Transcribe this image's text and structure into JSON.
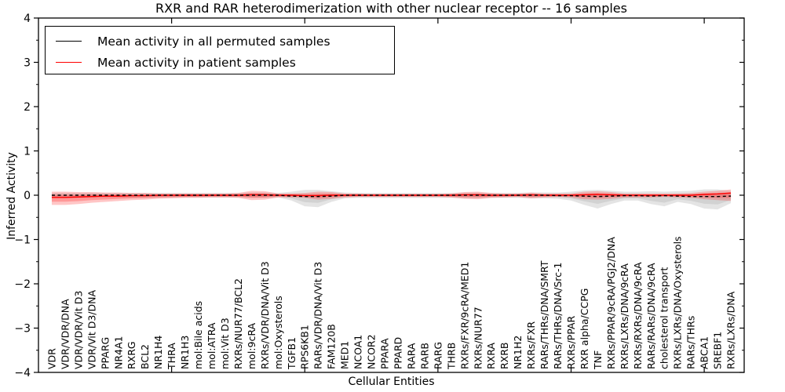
{
  "chart_data": {
    "type": "line",
    "title": "RXR and RAR heterodimerization with other nuclear receptor -- 16 samples",
    "xlabel": "Cellular Entities",
    "ylabel": "Inferred Activity",
    "ylim": [
      -4,
      4
    ],
    "ytick_values": [
      -4,
      -3,
      -2,
      -1,
      0,
      1,
      2,
      3,
      4
    ],
    "ytick_labels": [
      "−4",
      "−3",
      "−2",
      "−1",
      "0",
      "1",
      "2",
      "3",
      "4"
    ],
    "y_minor_step": 0.5,
    "x_major_ticks": [
      10,
      20,
      30,
      40,
      50
    ],
    "xlim": [
      0,
      53
    ],
    "grid": false,
    "legend_position": "upper left",
    "categories": [
      "VDR",
      "VDR/VDR/DNA",
      "VDR/VDR/Vit D3",
      "VDR/Vit D3/DNA",
      "PPARG",
      "NR4A1",
      "RXRG",
      "BCL2",
      "NR1H4",
      "THRA",
      "NR1H3",
      "mol:Bile acids",
      "mol:ATRA",
      "mol:Vit D3",
      "RXRs/NUR77/BCL2",
      "mol:9cRA",
      "RXRs/VDR/DNA/Vit D3",
      "mol:Oxysterols",
      "TGFB1",
      "RPS6KB1",
      "RARs/VDR/DNA/Vit D3",
      "FAM120B",
      "MED1",
      "NCOA1",
      "NCOR2",
      "PPARA",
      "PPARD",
      "RARA",
      "RARB",
      "RARG",
      "THRB",
      "RXRs/FXR/9cRA/MED1",
      "RXRs/NUR77",
      "RXRA",
      "RXRB",
      "NR1H2",
      "RXRs/FXR",
      "RARs/THRs/DNA/SMRT",
      "RARs/THRs/DNA/Src-1",
      "RXRs/PPAR",
      "RXR alpha/CCPG",
      "TNF",
      "RXRs/PPAR/9cRA/PGJ2/DNA",
      "RXRs/LXRs/DNA/9cRA",
      "RXRs/RXRs/DNA/9cRA",
      "RARs/RARs/DNA/9cRA",
      "cholesterol transport",
      "RXRs/LXRs/DNA/Oxysterols",
      "RARs/THRs",
      "ABCA1",
      "SREBF1",
      "RXRs/LXRs/DNA"
    ],
    "series": [
      {
        "name": "Mean activity in all permuted samples",
        "color": "#000000",
        "style": "dashed",
        "values": [
          0,
          0,
          0,
          0,
          0,
          0,
          0,
          0,
          0,
          0,
          0,
          0,
          0,
          0,
          0,
          0,
          0,
          0,
          -0.02,
          -0.03,
          -0.03,
          -0.02,
          0,
          0,
          0,
          0,
          0,
          0,
          0,
          0,
          0,
          0,
          0,
          0,
          0,
          0,
          0,
          0,
          -0.01,
          -0.01,
          -0.02,
          -0.03,
          -0.02,
          -0.01,
          -0.01,
          -0.02,
          -0.01,
          -0.02,
          -0.03,
          -0.03,
          -0.03,
          -0.02
        ]
      },
      {
        "name": "Mean activity in patient samples",
        "color": "#ff0000",
        "style": "solid",
        "values": [
          -0.05,
          -0.05,
          -0.04,
          -0.03,
          -0.02,
          -0.02,
          -0.01,
          -0.01,
          0,
          0,
          0,
          0,
          0,
          0,
          0,
          0.01,
          0.01,
          0,
          0,
          -0.01,
          -0.01,
          0,
          0,
          0,
          0,
          0,
          0,
          0,
          0,
          0,
          0,
          0.01,
          0.01,
          0,
          0,
          0,
          0.01,
          0,
          0,
          0,
          0.01,
          0.02,
          0.01,
          0,
          0,
          0,
          0,
          0,
          0,
          0.02,
          0.03,
          0.05
        ]
      }
    ],
    "bands": [
      {
        "name": "permuted-samples-range",
        "color": "rgba(130,130,130,0.22)",
        "inner_color": "rgba(130,130,130,0.18)",
        "upper": [
          0.05,
          0.05,
          0.05,
          0.05,
          0.05,
          0.05,
          0.05,
          0.05,
          0.05,
          0.05,
          0.05,
          0.05,
          0.05,
          0.05,
          0.05,
          0.06,
          0.06,
          0.05,
          0.08,
          0.12,
          0.12,
          0.09,
          0.06,
          0.05,
          0.05,
          0.05,
          0.05,
          0.05,
          0.05,
          0.05,
          0.05,
          0.06,
          0.06,
          0.05,
          0.05,
          0.05,
          0.06,
          0.06,
          0.06,
          0.08,
          0.11,
          0.12,
          0.1,
          0.08,
          0.08,
          0.09,
          0.08,
          0.09,
          0.1,
          0.13,
          0.13,
          0.1
        ],
        "lower": [
          -0.06,
          -0.06,
          -0.06,
          -0.06,
          -0.06,
          -0.06,
          -0.06,
          -0.06,
          -0.05,
          -0.05,
          -0.05,
          -0.05,
          -0.05,
          -0.05,
          -0.05,
          -0.06,
          -0.06,
          -0.05,
          -0.12,
          -0.25,
          -0.27,
          -0.15,
          -0.07,
          -0.06,
          -0.06,
          -0.06,
          -0.06,
          -0.06,
          -0.06,
          -0.06,
          -0.06,
          -0.07,
          -0.07,
          -0.06,
          -0.06,
          -0.06,
          -0.07,
          -0.07,
          -0.08,
          -0.12,
          -0.22,
          -0.3,
          -0.2,
          -0.12,
          -0.12,
          -0.2,
          -0.25,
          -0.15,
          -0.2,
          -0.3,
          -0.32,
          -0.18
        ]
      },
      {
        "name": "patient-samples-range",
        "color": "rgba(255,45,45,0.27)",
        "inner_color": "rgba(255,45,45,0.30)",
        "upper": [
          0.08,
          0.08,
          0.07,
          0.07,
          0.06,
          0.06,
          0.05,
          0.05,
          0.04,
          0.04,
          0.04,
          0.04,
          0.04,
          0.04,
          0.05,
          0.1,
          0.09,
          0.04,
          0.04,
          0.05,
          0.08,
          0.07,
          0.04,
          0.04,
          0.03,
          0.03,
          0.03,
          0.03,
          0.03,
          0.03,
          0.04,
          0.07,
          0.08,
          0.05,
          0.04,
          0.04,
          0.06,
          0.04,
          0.04,
          0.04,
          0.08,
          0.09,
          0.07,
          0.04,
          0.04,
          0.04,
          0.04,
          0.04,
          0.05,
          0.08,
          0.1,
          0.13
        ],
        "lower": [
          -0.22,
          -0.22,
          -0.2,
          -0.17,
          -0.15,
          -0.13,
          -0.11,
          -0.1,
          -0.08,
          -0.07,
          -0.06,
          -0.06,
          -0.05,
          -0.05,
          -0.06,
          -0.11,
          -0.1,
          -0.05,
          -0.05,
          -0.06,
          -0.1,
          -0.08,
          -0.05,
          -0.04,
          -0.04,
          -0.04,
          -0.04,
          -0.04,
          -0.04,
          -0.04,
          -0.05,
          -0.08,
          -0.09,
          -0.06,
          -0.05,
          -0.04,
          -0.07,
          -0.05,
          -0.04,
          -0.05,
          -0.09,
          -0.1,
          -0.08,
          -0.05,
          -0.05,
          -0.05,
          -0.04,
          -0.05,
          -0.06,
          -0.09,
          -0.11,
          -0.13
        ]
      }
    ]
  },
  "legend": {
    "items": [
      {
        "label": "Mean activity in all permuted samples",
        "color": "#000000"
      },
      {
        "label": "Mean activity in patient samples",
        "color": "#ff0000"
      }
    ]
  }
}
